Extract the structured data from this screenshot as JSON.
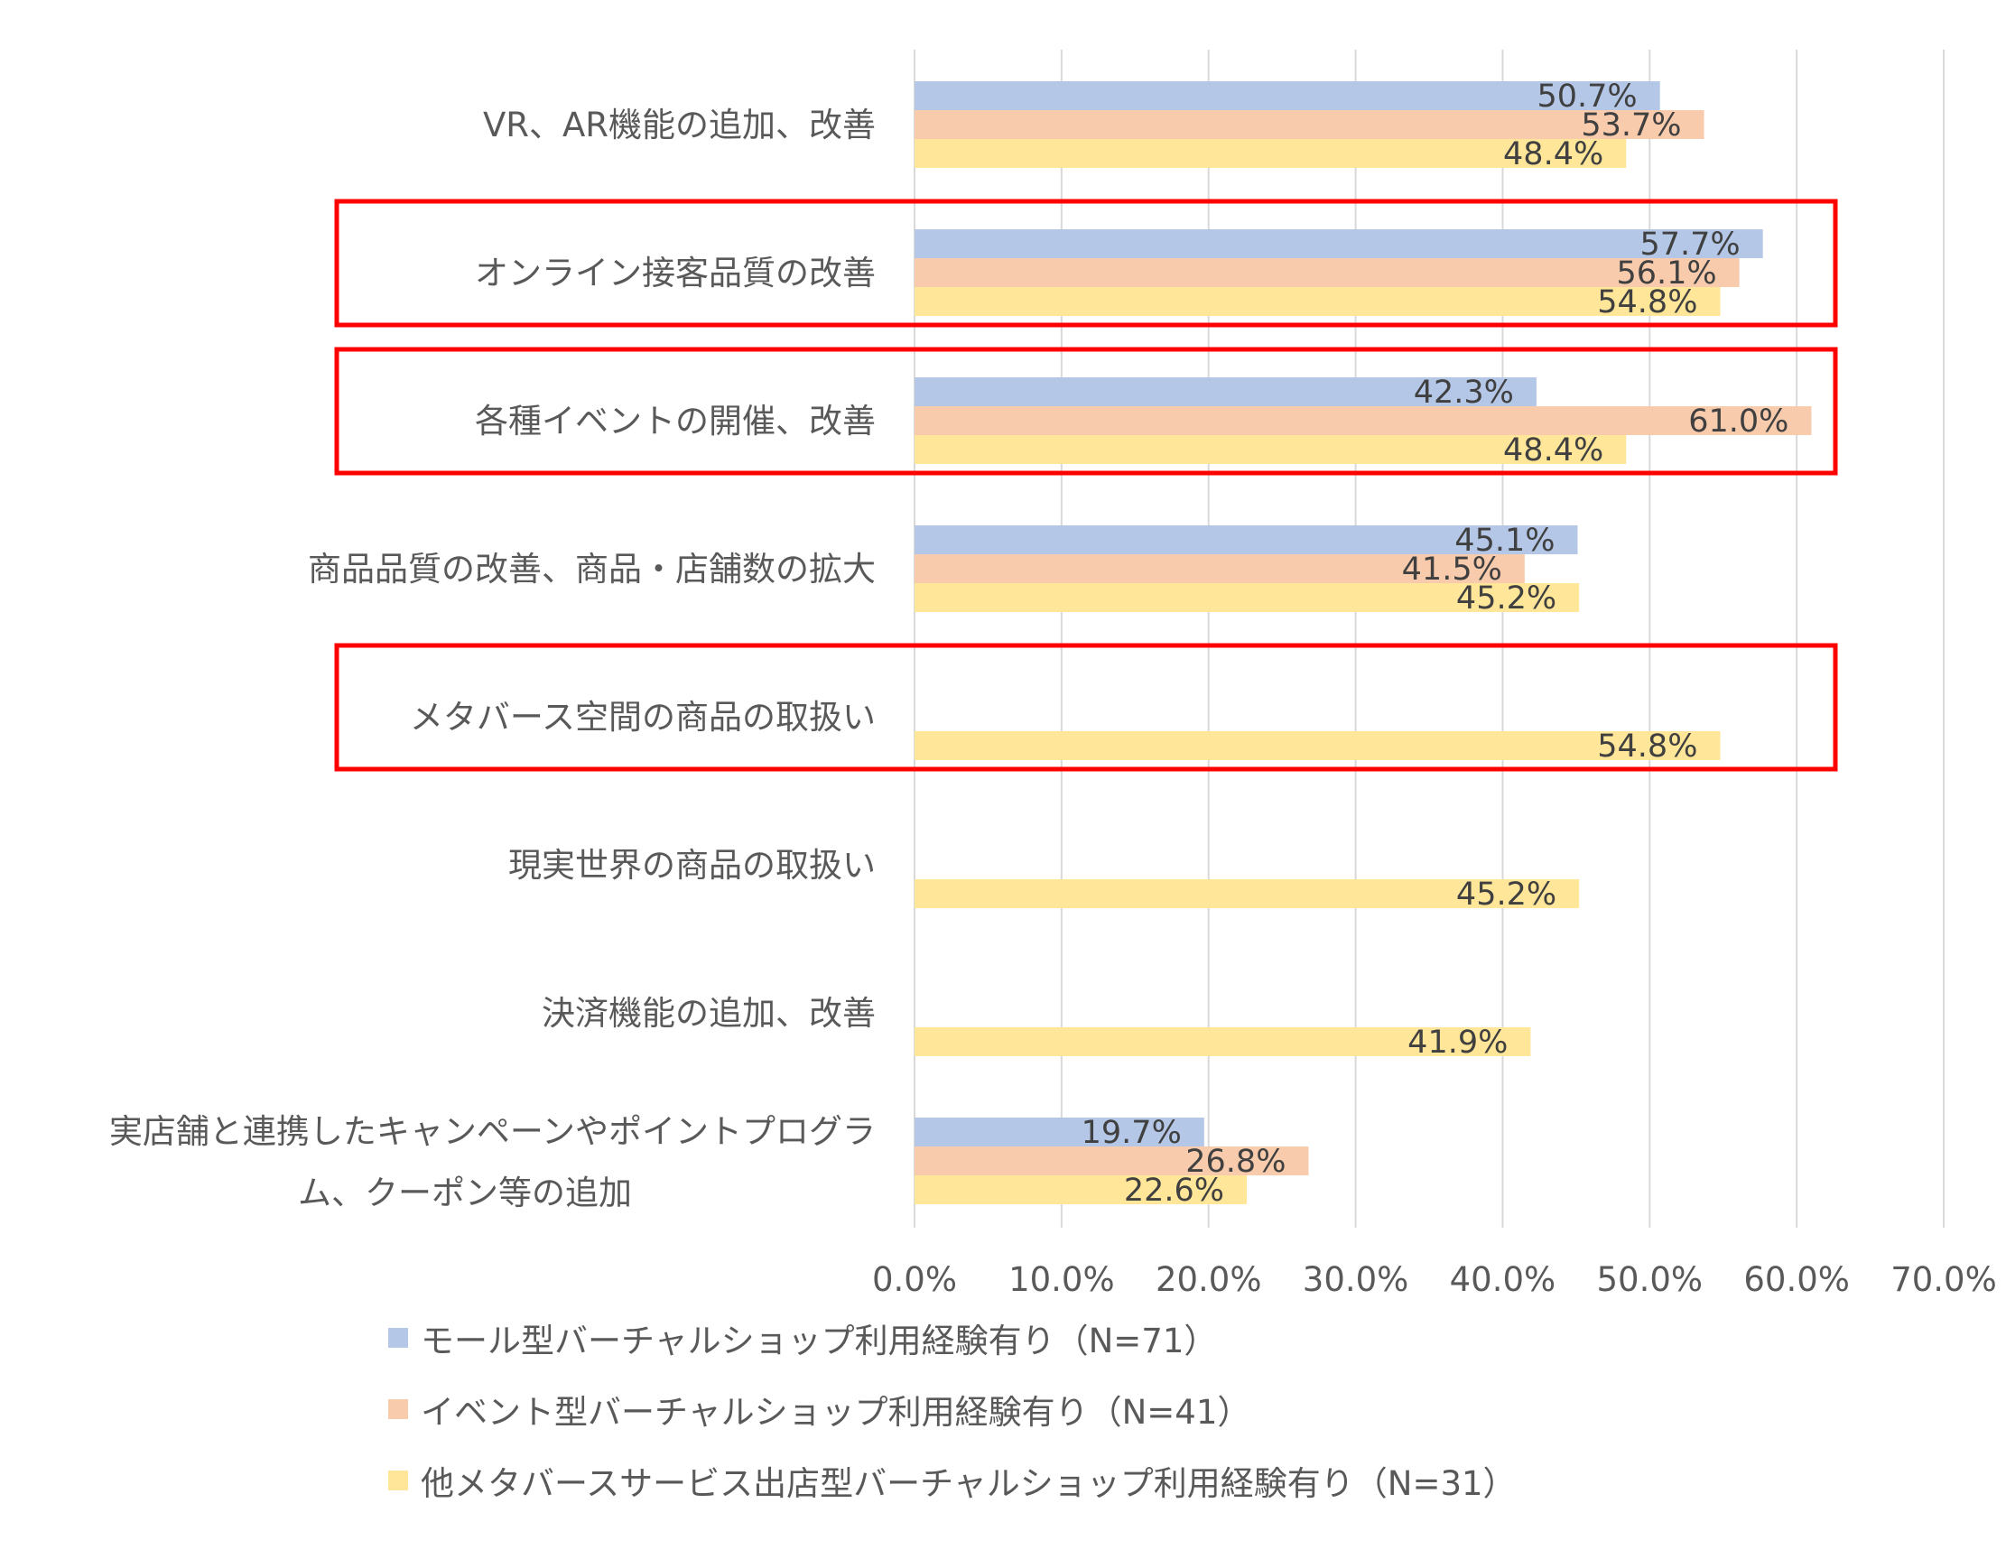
{
  "chart_data": {
    "type": "bar",
    "orientation": "horizontal",
    "categories": [
      "VR、AR機能の追加、改善",
      "オンライン接客品質の改善",
      "各種イベントの開催、改善",
      "商品品質の改善、商品・店舗数の拡大",
      "メタバース空間の商品の取扱い",
      "現実世界の商品の取扱い",
      "決済機能の追加、改善",
      "実店舗と連携したキャンペーンやポイントプログラム、クーポン等の追加"
    ],
    "category_lines": [
      [
        "VR、AR機能の追加、改善"
      ],
      [
        "オンライン接客品質の改善"
      ],
      [
        "各種イベントの開催、改善"
      ],
      [
        "商品品質の改善、商品・店舗数の拡大"
      ],
      [
        "メタバース空間の商品の取扱い"
      ],
      [
        "現実世界の商品の取扱い"
      ],
      [
        "決済機能の追加、改善"
      ],
      [
        "実店舗と連携したキャンペーンやポイントプログラ",
        "ム、クーポン等の追加"
      ]
    ],
    "series": [
      {
        "name": "モール型バーチャルショップ利用経験有り（N=71）",
        "color": "#B4C7E7",
        "values": [
          50.7,
          57.7,
          42.3,
          45.1,
          null,
          null,
          null,
          19.7
        ],
        "labels": [
          "50.7%",
          "57.7%",
          "42.3%",
          "45.1%",
          "",
          "",
          "",
          "19.7%"
        ]
      },
      {
        "name": "イベント型バーチャルショップ利用経験有り（N=41）",
        "color": "#F8CBAD",
        "values": [
          53.7,
          56.1,
          61.0,
          41.5,
          null,
          null,
          null,
          26.8
        ],
        "labels": [
          "53.7%",
          "56.1%",
          "61.0%",
          "41.5%",
          "",
          "",
          "",
          "26.8%"
        ]
      },
      {
        "name": "他メタバースサービス出店型バーチャルショップ利用経験有り（N=31）",
        "color": "#FFE699",
        "values": [
          48.4,
          54.8,
          48.4,
          45.2,
          54.8,
          45.2,
          41.9,
          22.6
        ],
        "labels": [
          "48.4%",
          "54.8%",
          "48.4%",
          "45.2%",
          "54.8%",
          "45.2%",
          "41.9%",
          "22.6%"
        ]
      }
    ],
    "xlim": [
      0,
      70
    ],
    "xticks": [
      "0.0%",
      "10.0%",
      "20.0%",
      "30.0%",
      "40.0%",
      "50.0%",
      "60.0%",
      "70.0%"
    ],
    "grid": true,
    "legend_position": "bottom",
    "highlighted_categories": [
      1,
      2,
      4
    ],
    "highlight_color": "#FF0000"
  }
}
